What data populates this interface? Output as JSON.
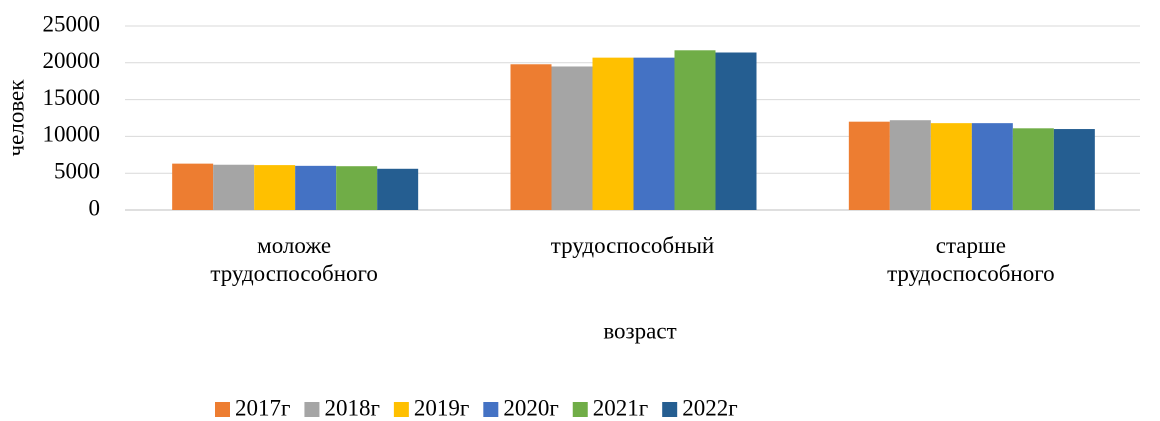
{
  "chart_data": {
    "type": "bar",
    "y_label": "человек",
    "x_label": "возраст",
    "categories": [
      "моложе трудоспособного",
      "трудоспособный",
      "старше трудоспособного"
    ],
    "series": [
      {
        "name": "2017г",
        "color": "#ed7d31",
        "values": [
          6300,
          19800,
          12000
        ]
      },
      {
        "name": "2018г",
        "color": "#a5a5a5",
        "values": [
          6150,
          19500,
          12200
        ]
      },
      {
        "name": "2019г",
        "color": "#ffc000",
        "values": [
          6100,
          20700,
          11800
        ]
      },
      {
        "name": "2020г",
        "color": "#4472c4",
        "values": [
          6000,
          20700,
          11800
        ]
      },
      {
        "name": "2021г",
        "color": "#70ad47",
        "values": [
          5950,
          21700,
          11100
        ]
      },
      {
        "name": "2022г",
        "color": "#255e91",
        "values": [
          5600,
          21400,
          11000
        ]
      }
    ],
    "ylim": [
      0,
      25000
    ],
    "yticks": [
      0,
      5000,
      10000,
      15000,
      20000,
      25000
    ],
    "grid": true,
    "legend": "bottom"
  }
}
